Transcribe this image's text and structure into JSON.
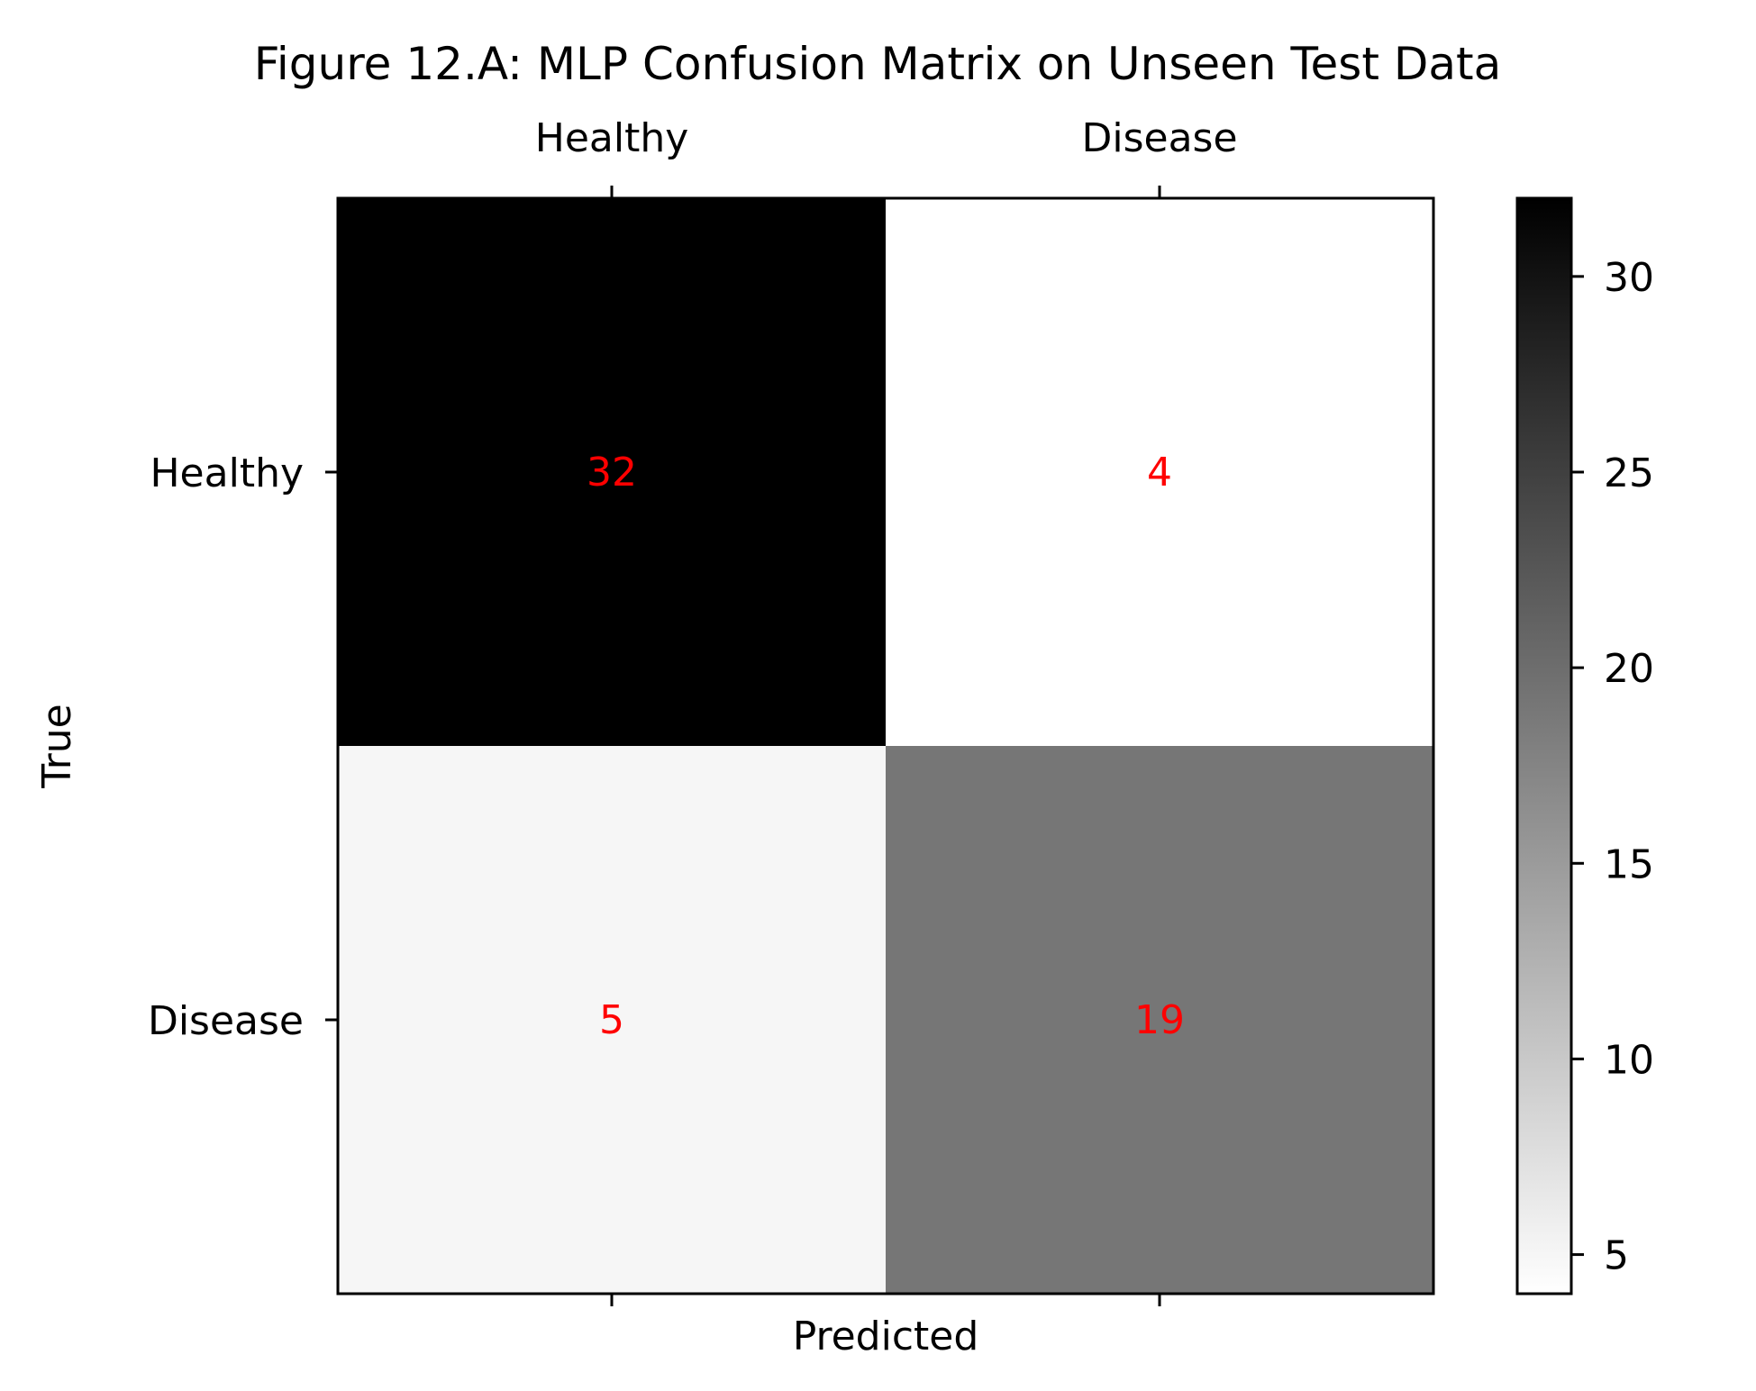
{
  "chart_data": {
    "type": "heatmap",
    "title": "Figure 12.A: MLP Confusion Matrix on Unseen Test Data",
    "xlabel": "Predicted",
    "ylabel": "True",
    "x_categories": [
      "Healthy",
      "Disease"
    ],
    "y_categories": [
      "Healthy",
      "Disease"
    ],
    "x_tick_position": "top",
    "matrix": [
      [
        32,
        4
      ],
      [
        5,
        19
      ]
    ],
    "colormap": "gray_r",
    "color_range": [
      4,
      32
    ],
    "colorbar_ticks": [
      5,
      10,
      15,
      20,
      25,
      30
    ],
    "annotation_color": "#ff0000",
    "grid": false
  }
}
